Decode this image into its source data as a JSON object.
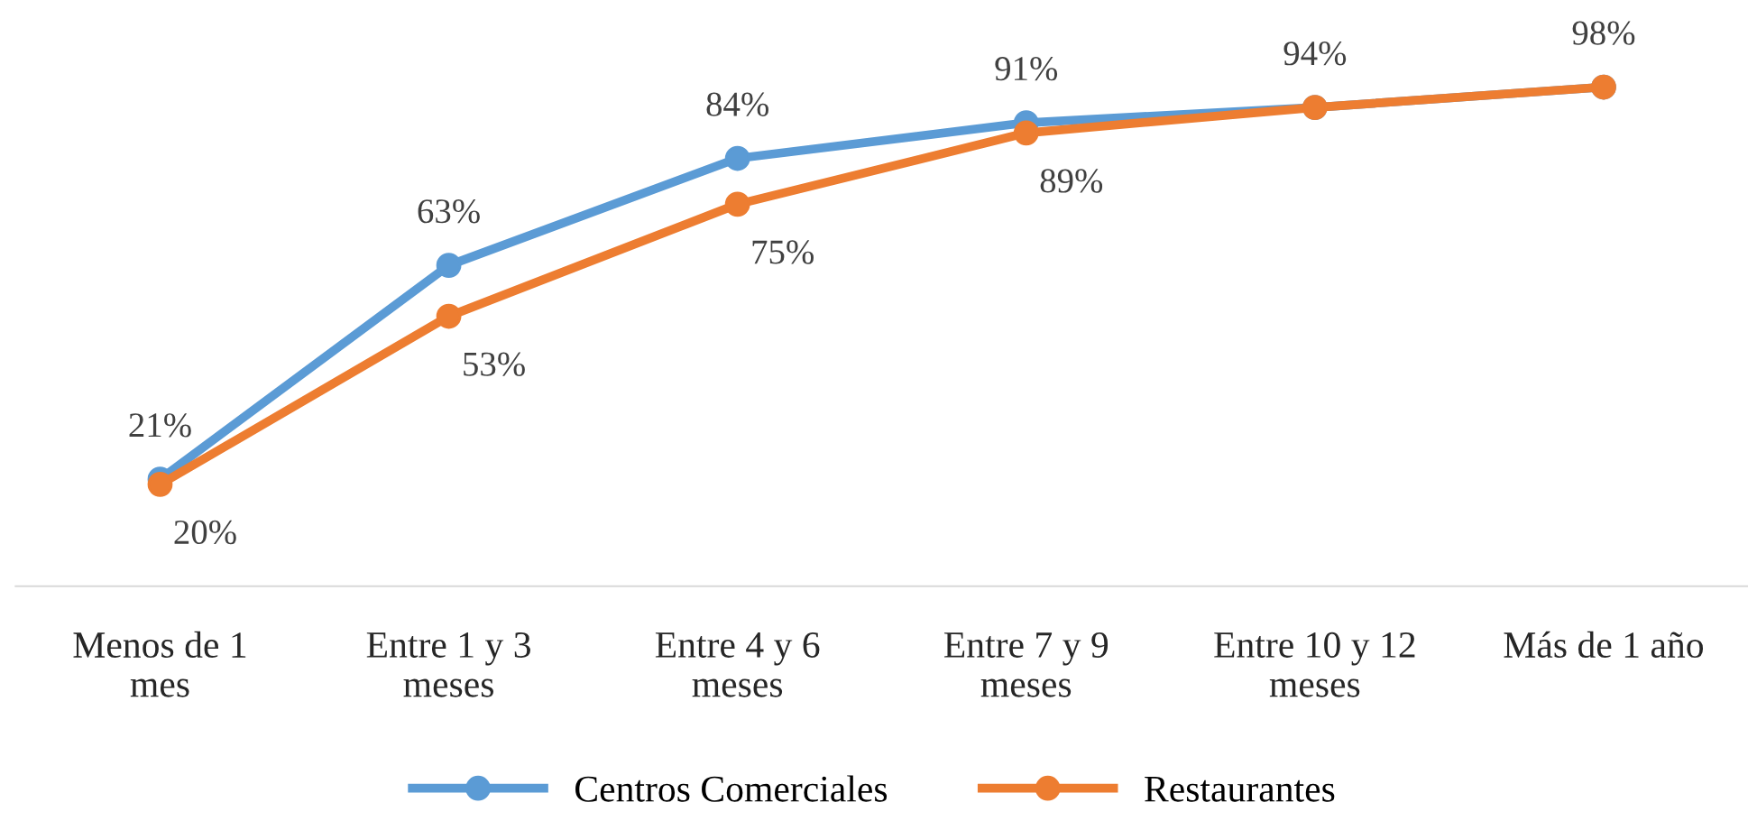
{
  "chart_data": {
    "type": "line",
    "categories": [
      "Menos de 1 mes",
      "Entre 1 y 3 meses",
      "Entre 4 y 6 meses",
      "Entre 7 y 9 meses",
      "Entre 10 y 12 meses",
      "Más de 1 año"
    ],
    "series": [
      {
        "name": "Centros Comerciales",
        "color": "#5b9bd5",
        "values": [
          21,
          63,
          84,
          91,
          94,
          98
        ],
        "value_labels": [
          "21%",
          "63%",
          "84%",
          "91%",
          "94%",
          "98%"
        ]
      },
      {
        "name": "Restaurantes",
        "color": "#ed7d31",
        "values": [
          20,
          53,
          75,
          89,
          94,
          98
        ],
        "value_labels": [
          "20%",
          "53%",
          "75%",
          "89%",
          null,
          null
        ]
      }
    ],
    "tick_labels": "x",
    "grid": false,
    "legend": "bottom",
    "marker": "circle",
    "line_style": "solid"
  }
}
